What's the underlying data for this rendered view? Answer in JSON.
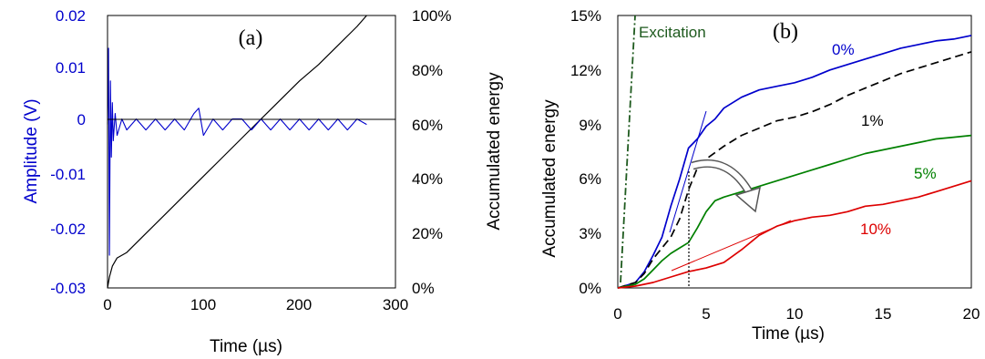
{
  "chart_data": [
    {
      "panel_label": "(a)",
      "type": "line",
      "x_label": "Time (µs)",
      "y_label_left": "Amplitude (V)",
      "y_label_right": "Accumulated energy",
      "x_ticks": [
        "0",
        "100",
        "200",
        "300"
      ],
      "y_left_ticks": [
        "-0.03",
        "-0.02",
        "-0.01",
        "0",
        "0.01",
        "0.02"
      ],
      "y_right_ticks": [
        "0%",
        "20%",
        "40%",
        "60%",
        "80%",
        "100%"
      ],
      "xlim": [
        0,
        300
      ],
      "ylim_left": [
        -0.03,
        0.02
      ],
      "ylim_right": [
        0,
        100
      ],
      "grid": false,
      "colors": {
        "amplitude": "#0000cc",
        "energy": "#000000",
        "axis_left": "#0000cc"
      },
      "series": [
        {
          "axis": "left",
          "color": "#0000cc",
          "x": [
            0,
            1,
            2,
            3,
            4,
            5,
            6,
            8,
            10,
            15,
            20,
            30,
            40,
            50,
            60,
            70,
            80,
            90,
            95,
            100,
            110,
            120,
            130,
            140,
            150,
            160,
            170,
            180,
            190,
            200,
            210,
            220,
            230,
            240,
            250,
            260,
            270
          ],
          "y": [
            0.0,
            0.014,
            -0.024,
            0.008,
            -0.006,
            0.004,
            -0.003,
            0.002,
            -0.002,
            0.001,
            -0.001,
            0.001,
            -0.001,
            0.001,
            -0.001,
            0.001,
            -0.001,
            0.002,
            0.003,
            -0.002,
            0.001,
            -0.001,
            0.001,
            0.001,
            -0.001,
            0.001,
            -0.001,
            0.001,
            -0.001,
            0.001,
            -0.001,
            0.001,
            -0.001,
            0.001,
            -0.001,
            0.001,
            0.0
          ]
        },
        {
          "axis": "right",
          "color": "#000000",
          "x": [
            0,
            2,
            5,
            10,
            20,
            40,
            60,
            80,
            100,
            120,
            140,
            160,
            180,
            200,
            220,
            240,
            260,
            270
          ],
          "y": [
            0,
            4,
            8,
            11,
            13,
            20,
            27,
            34,
            41,
            48,
            55,
            62,
            69,
            76,
            82,
            89,
            96,
            100
          ]
        }
      ]
    },
    {
      "panel_label": "(b)",
      "type": "line",
      "x_label": "Time (µs)",
      "y_label": "Accumulated energy",
      "x_ticks": [
        "0",
        "5",
        "10",
        "15",
        "20"
      ],
      "y_ticks": [
        "0%",
        "3%",
        "6%",
        "9%",
        "12%",
        "15%"
      ],
      "xlim": [
        0,
        20
      ],
      "ylim": [
        0,
        15
      ],
      "grid": false,
      "annotations": {
        "excitation": "Excitation"
      },
      "series": [
        {
          "name": "0%",
          "color": "#0000cc",
          "x": [
            0,
            1,
            1.5,
            2,
            2.5,
            3,
            3.5,
            4,
            4.5,
            5,
            5.5,
            6,
            7,
            8,
            9,
            10,
            11,
            12,
            13,
            14,
            15,
            16,
            17,
            18,
            19,
            20
          ],
          "y": [
            0,
            0.3,
            0.9,
            1.8,
            2.8,
            4.5,
            6.0,
            7.7,
            8.2,
            8.9,
            9.3,
            9.9,
            10.5,
            10.9,
            11.1,
            11.3,
            11.6,
            12.0,
            12.3,
            12.6,
            12.9,
            13.2,
            13.4,
            13.6,
            13.7,
            13.9
          ]
        },
        {
          "name": "1%",
          "color": "#000000",
          "x": [
            0,
            1,
            1.5,
            2,
            2.5,
            3,
            3.5,
            4,
            4.5,
            5,
            6,
            7,
            8,
            9,
            10,
            11,
            12,
            13,
            14,
            15,
            16,
            17,
            18,
            19,
            20
          ],
          "y": [
            0,
            0.3,
            0.8,
            1.6,
            2.2,
            2.8,
            3.8,
            5.4,
            6.6,
            7.1,
            7.8,
            8.4,
            8.8,
            9.2,
            9.4,
            9.7,
            10.1,
            10.6,
            11.0,
            11.4,
            11.8,
            12.1,
            12.4,
            12.7,
            13.0
          ]
        },
        {
          "name": "5%",
          "color": "#008000",
          "x": [
            0,
            1,
            1.5,
            2,
            2.5,
            3,
            3.5,
            4,
            4.5,
            5,
            5.5,
            6,
            7,
            8,
            9,
            10,
            11,
            12,
            13,
            14,
            15,
            16,
            17,
            18,
            19,
            20
          ],
          "y": [
            0,
            0.2,
            0.5,
            1.0,
            1.5,
            1.9,
            2.2,
            2.5,
            3.3,
            4.2,
            4.8,
            5.0,
            5.3,
            5.6,
            5.9,
            6.2,
            6.5,
            6.8,
            7.1,
            7.4,
            7.6,
            7.8,
            8.0,
            8.2,
            8.3,
            8.4
          ]
        },
        {
          "name": "10%",
          "color": "#dd0000",
          "x": [
            0,
            1,
            2,
            3,
            4,
            5,
            6,
            7,
            8,
            9,
            10,
            11,
            12,
            13,
            14,
            15,
            16,
            17,
            18,
            19,
            20
          ],
          "y": [
            0,
            0.1,
            0.3,
            0.6,
            0.9,
            1.1,
            1.4,
            2.1,
            2.9,
            3.4,
            3.7,
            3.9,
            4.0,
            4.2,
            4.5,
            4.6,
            4.8,
            5.0,
            5.3,
            5.6,
            5.9
          ]
        }
      ]
    }
  ]
}
